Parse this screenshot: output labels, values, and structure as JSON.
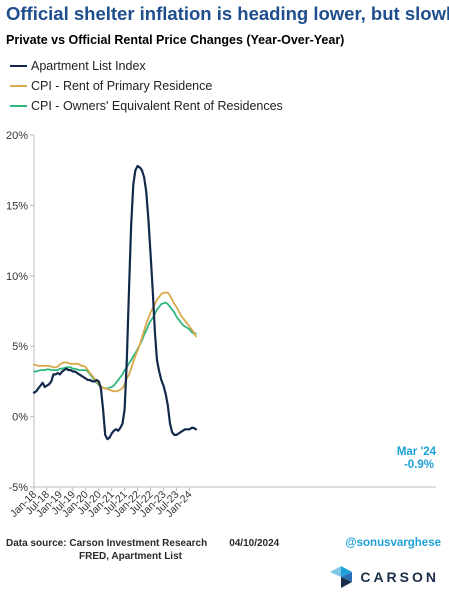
{
  "header": {
    "title": "Official shelter inflation is heading lower, but slowly",
    "subtitle": "Private vs Official Rental Price Changes (Year-Over-Year)"
  },
  "legend": [
    {
      "label": "Apartment List Index",
      "color": "#13294b"
    },
    {
      "label": "CPI - Rent of Primary Residence",
      "color": "#d9a84a"
    },
    {
      "label": "CPI - Owners' Equivalent Rent of Residences",
      "color": "#2eb67d"
    }
  ],
  "annotation": {
    "line1": "Mar '24",
    "line2": "-0.9%",
    "color": "#1fa0d8"
  },
  "footer": {
    "source_line1": "Data source: Carson Investment Research",
    "date": "04/10/2024",
    "source_line2": "FRED, Apartment List",
    "handle": "@sonusvarghese",
    "brand": "CARSON"
  },
  "chart_data": {
    "type": "line",
    "x_tick_labels": [
      "Jan-18",
      "Jul-18",
      "Jan-19",
      "Jul-19",
      "Jan-20",
      "Jul-20",
      "Jan-21",
      "Jul-21",
      "Jan-22",
      "Jul-22",
      "Jan-23",
      "Jul-23",
      "Jan-24"
    ],
    "y_tick_labels": [
      "-5%",
      "0%",
      "5%",
      "10%",
      "15%",
      "20%"
    ],
    "ylim": [
      -5,
      20
    ],
    "x_start": "Jan-18",
    "grid": false,
    "legend_position": "top-left",
    "series": [
      {
        "name": "Apartment List Index",
        "color": "#13294b",
        "values": [
          1.7,
          1.8,
          2.0,
          2.2,
          2.4,
          2.1,
          2.2,
          2.3,
          2.5,
          3.0,
          3.0,
          3.1,
          3.0,
          3.2,
          3.3,
          3.4,
          3.3,
          3.3,
          3.2,
          3.2,
          3.1,
          3.0,
          2.9,
          2.8,
          2.7,
          2.6,
          2.6,
          2.5,
          2.5,
          2.6,
          2.5,
          2.0,
          0.5,
          -1.3,
          -1.6,
          -1.5,
          -1.2,
          -1.0,
          -0.9,
          -1.0,
          -0.8,
          -0.5,
          0.5,
          4.0,
          9.0,
          13.5,
          16.5,
          17.5,
          17.8,
          17.7,
          17.5,
          17.0,
          16.0,
          14.0,
          11.5,
          9.0,
          6.0,
          4.0,
          3.2,
          2.6,
          2.2,
          1.6,
          0.8,
          -0.5,
          -1.1,
          -1.3,
          -1.3,
          -1.2,
          -1.1,
          -1.0,
          -0.9,
          -0.9,
          -0.9,
          -0.8,
          -0.8,
          -0.9
        ]
      },
      {
        "name": "CPI - Rent of Primary Residence",
        "color": "#d9a84a",
        "values": [
          3.7,
          3.65,
          3.6,
          3.6,
          3.6,
          3.6,
          3.6,
          3.6,
          3.55,
          3.5,
          3.5,
          3.55,
          3.7,
          3.8,
          3.85,
          3.85,
          3.8,
          3.75,
          3.75,
          3.75,
          3.75,
          3.7,
          3.6,
          3.6,
          3.5,
          3.3,
          3.1,
          2.9,
          2.7,
          2.5,
          2.3,
          2.15,
          2.05,
          2.0,
          1.95,
          1.9,
          1.85,
          1.8,
          1.8,
          1.85,
          1.9,
          2.0,
          2.3,
          2.7,
          3.0,
          3.4,
          3.9,
          4.3,
          4.7,
          5.1,
          5.6,
          6.1,
          6.6,
          7.0,
          7.4,
          7.7,
          8.0,
          8.3,
          8.5,
          8.7,
          8.8,
          8.8,
          8.8,
          8.6,
          8.3,
          8.0,
          7.8,
          7.5,
          7.2,
          7.0,
          6.8,
          6.6,
          6.4,
          6.2,
          6.0,
          5.7
        ]
      },
      {
        "name": "CPI - Owners' Equivalent Rent of Residences",
        "color": "#2eb67d",
        "values": [
          3.2,
          3.2,
          3.25,
          3.3,
          3.3,
          3.3,
          3.35,
          3.35,
          3.3,
          3.3,
          3.3,
          3.3,
          3.4,
          3.4,
          3.45,
          3.5,
          3.5,
          3.5,
          3.4,
          3.4,
          3.35,
          3.3,
          3.3,
          3.3,
          3.3,
          3.2,
          3.0,
          2.8,
          2.6,
          2.4,
          2.25,
          2.1,
          2.05,
          2.0,
          2.0,
          2.05,
          2.1,
          2.2,
          2.4,
          2.6,
          2.8,
          3.0,
          3.3,
          3.5,
          3.8,
          4.0,
          4.3,
          4.5,
          4.8,
          5.1,
          5.4,
          5.8,
          6.1,
          6.5,
          6.8,
          7.0,
          7.3,
          7.6,
          7.8,
          8.0,
          8.05,
          8.1,
          8.0,
          7.8,
          7.6,
          7.4,
          7.1,
          6.9,
          6.7,
          6.5,
          6.4,
          6.3,
          6.2,
          6.0,
          5.9,
          5.9
        ]
      }
    ]
  }
}
